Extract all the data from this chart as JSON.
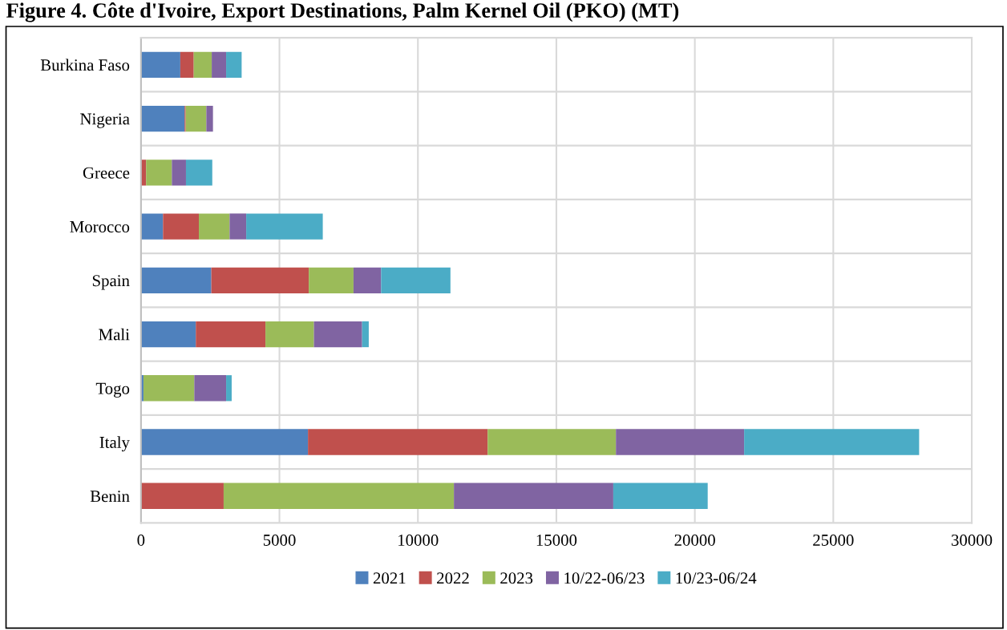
{
  "chart_data": {
    "type": "bar",
    "orientation": "horizontal",
    "stacked": true,
    "title": "Figure 4. Côte d'Ivoire, Export Destinations, Palm Kernel Oil (PKO) (MT)",
    "categories": [
      "Burkina Faso",
      "Nigeria",
      "Greece",
      "Morocco",
      "Spain",
      "Mali",
      "Togo",
      "Italy",
      "Benin"
    ],
    "series": [
      {
        "name": "2021",
        "color": "#4f81bd",
        "values": [
          1420,
          1575,
          0,
          795,
          2540,
          1980,
          90,
          6030,
          0
        ]
      },
      {
        "name": "2022",
        "color": "#c0504d",
        "values": [
          485,
          40,
          185,
          1295,
          3520,
          2515,
          0,
          6490,
          2985
        ]
      },
      {
        "name": "2023",
        "color": "#9bbb59",
        "values": [
          650,
          745,
          930,
          1110,
          1615,
          1750,
          1835,
          4630,
          8315
        ]
      },
      {
        "name": "10/22-06/23",
        "color": "#8064a2",
        "values": [
          520,
          240,
          510,
          600,
          995,
          1740,
          1150,
          4630,
          5755
        ]
      },
      {
        "name": "10/23-06/24",
        "color": "#4bacc6",
        "values": [
          560,
          0,
          950,
          2765,
          2505,
          240,
          200,
          6320,
          3410
        ]
      }
    ],
    "xlim": [
      0,
      30000
    ],
    "xticks": [
      0,
      5000,
      10000,
      15000,
      20000,
      25000,
      30000
    ],
    "grid": true,
    "legend": "bottom"
  }
}
